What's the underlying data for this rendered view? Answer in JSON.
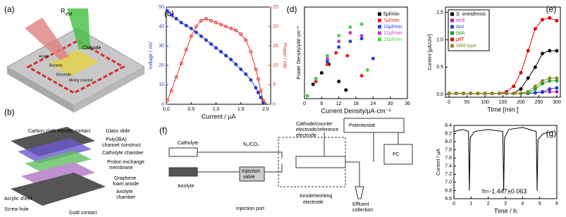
{
  "chart_data": [
    {
      "type": "line",
      "panel_label": "(c)",
      "xlabel": "Current / μA",
      "ylabel": "Voltage / mV",
      "y2label": "Power / nW",
      "color_axes": true,
      "x": [
        0.02,
        0.1,
        0.2,
        0.3,
        0.4,
        0.5,
        0.6,
        0.7,
        0.8,
        0.9,
        1.0,
        1.1,
        1.2,
        1.3,
        1.4,
        1.5,
        1.6,
        1.7,
        1.8,
        1.85,
        1.9,
        1.95
      ],
      "series": [
        {
          "color": "#2a3fc0",
          "marker": "filled",
          "values": [
            48,
            46,
            44,
            42,
            40.5,
            39,
            37,
            35,
            33,
            31,
            29,
            27,
            25,
            23,
            20.5,
            18,
            15.5,
            12.5,
            8.5,
            6,
            3.5,
            1
          ]
        },
        {
          "color": "#e03030",
          "marker": "open",
          "axis": "y2",
          "values": [
            1,
            3.5,
            7,
            10.5,
            14,
            17.5,
            20,
            21.5,
            22,
            21.5,
            21,
            20.5,
            20,
            19.5,
            19,
            18,
            16.5,
            13.5,
            9,
            6.5,
            3.5,
            1
          ]
        }
      ],
      "xlim": [
        0,
        2.1
      ],
      "xticks": [
        {
          "value": 0,
          "label": "0.0"
        },
        0.5,
        {
          "value": 1,
          "label": "1.0"
        },
        1.5,
        {
          "value": 2,
          "label": "2.0"
        }
      ],
      "ylim": [
        0,
        50
      ],
      "yticks": [
        0,
        10,
        20,
        30,
        40,
        50
      ],
      "y2lim": [
        0,
        25
      ],
      "y2ticks": [
        0,
        5,
        10,
        15,
        20,
        25
      ]
    },
    {
      "type": "scatter",
      "panel_label": "(d)",
      "xlabel": "Current Density/μA·cm⁻²",
      "ylabel": "Power Density/μW·cm⁻²",
      "legend": "upper right",
      "series": [
        {
          "name": "5μl/min",
          "color": "#000000",
          "x": [
            1,
            3,
            6,
            8.5,
            12,
            14.5
          ],
          "values": [
            0.5,
            2.5,
            4.5,
            6,
            3,
            1.5
          ]
        },
        {
          "name": "7μl/min",
          "color": "#e02020",
          "x": [
            1,
            4,
            8,
            11,
            15,
            20
          ],
          "values": [
            0.5,
            3,
            6,
            8,
            7.5,
            4
          ]
        },
        {
          "name": "10μl/min",
          "color": "#2040e0",
          "x": [
            1,
            4,
            8,
            12,
            16,
            20,
            24
          ],
          "values": [
            0.5,
            3.5,
            6.5,
            9,
            10,
            10.5,
            7
          ]
        },
        {
          "name": "12μl/min",
          "color": "#c040c0",
          "x": [
            1,
            4,
            8,
            12,
            16,
            20
          ],
          "values": [
            0.5,
            3.5,
            7,
            10,
            11.5,
            11
          ]
        },
        {
          "name": "15μl/min",
          "color": "#50d050",
          "x": [
            1,
            4,
            8,
            12,
            16,
            20,
            22
          ],
          "values": [
            0.5,
            3.5,
            7.5,
            11,
            12.5,
            13,
            5
          ]
        }
      ],
      "xlim": [
        0,
        36
      ],
      "xticks": [
        0,
        6,
        12,
        18,
        24,
        30,
        36
      ],
      "ylim": [
        0,
        16
      ]
    },
    {
      "type": "line",
      "panel_label": "(e)",
      "xlabel": "Time [min.]",
      "ylabel": "Current [μA/cm²]",
      "legend": "upper left",
      "x": [
        0,
        20,
        40,
        60,
        80,
        100,
        120,
        140,
        160,
        180,
        200,
        220,
        240,
        260,
        280,
        300
      ],
      "series": [
        {
          "name": "S. oneidensis",
          "color": "#000000",
          "marker": "filled",
          "values": [
            0.02,
            0.02,
            0.02,
            0.02,
            0.02,
            0.02,
            0.02,
            0.02,
            0.02,
            0.02,
            0.1,
            0.3,
            0.5,
            0.75,
            0.8,
            0.8
          ]
        },
        {
          "name": "nirS",
          "color": "#b01fb0",
          "marker": "filled",
          "values": [
            0.02,
            0.02,
            0.02,
            0.02,
            0.02,
            0.02,
            0.02,
            0.02,
            0.02,
            0.02,
            0.02,
            0.02,
            0.03,
            0.04,
            0.05,
            0.05
          ]
        },
        {
          "name": "lasI",
          "color": "#1f3fd0",
          "marker": "filled",
          "values": [
            0.02,
            0.02,
            0.02,
            0.02,
            0.02,
            0.02,
            0.02,
            0.02,
            0.02,
            0.02,
            0.02,
            0.02,
            0.03,
            0.05,
            0.1,
            0.12
          ]
        },
        {
          "name": "bdA",
          "color": "#1f9f1f",
          "marker": "filled",
          "values": [
            0.02,
            0.02,
            0.02,
            0.02,
            0.02,
            0.02,
            0.02,
            0.02,
            0.02,
            0.02,
            0.02,
            0.02,
            0.1,
            0.2,
            0.25,
            0.25
          ]
        },
        {
          "name": "pilT",
          "color": "#e00000",
          "marker": "filled",
          "values": [
            0.02,
            0.02,
            0.02,
            0.02,
            0.02,
            0.02,
            0.02,
            0.02,
            0.05,
            0.15,
            0.4,
            0.8,
            1.2,
            1.37,
            1.4,
            1.35
          ]
        },
        {
          "name": "Wild-type",
          "color": "#8a8a20",
          "marker": "filled",
          "values": [
            0.02,
            0.02,
            0.02,
            0.02,
            0.02,
            0.02,
            0.02,
            0.02,
            0.02,
            0.02,
            0.02,
            0.05,
            0.15,
            0.25,
            0.3,
            0.3
          ]
        }
      ],
      "xlim": [
        -10,
        310
      ],
      "xticks": [
        0,
        50,
        100,
        150,
        200,
        250,
        300
      ],
      "ylim": [
        -0.05,
        1.6
      ],
      "yticks": [
        {
          "value": 0,
          "label": "0.0"
        },
        0.5,
        {
          "value": 1,
          "label": "1.0"
        },
        1.5
      ]
    },
    {
      "type": "line",
      "panel_label": "(g)",
      "xlabel": "Time / h",
      "ylabel": "Current / μA",
      "annotation": "h=-1.447±0.063",
      "x": [
        0,
        0.5,
        0.85,
        0.9,
        0.95,
        1.2,
        2.0,
        2.85,
        2.9,
        2.95,
        3.2,
        4.0,
        4.8,
        4.85,
        4.9,
        5.2,
        5.8
      ],
      "series": [
        {
          "color": "#000000",
          "marker": "none",
          "values": [
            8.25,
            8.3,
            8.25,
            6.8,
            8.1,
            8.25,
            8.3,
            8.25,
            6.8,
            8.1,
            8.3,
            8.35,
            8.25,
            6.8,
            8.05,
            8.2,
            8.25
          ]
        }
      ],
      "xlim": [
        0,
        6
      ],
      "xticks": [
        0,
        1,
        2,
        3,
        4,
        5,
        6
      ],
      "ylim": [
        6.6,
        8.4
      ],
      "yticks": [
        6.6,
        6.8,
        {
          "value": 7,
          "label": "7.0"
        },
        7.2,
        7.4,
        7.6,
        7.8,
        {
          "value": 8,
          "label": "8.0"
        },
        8.2,
        8.4
      ]
    }
  ],
  "diagrams": {
    "a": {
      "label": "(a)",
      "r": "R",
      "r_sub": "ext",
      "labels": [
        "Cathode",
        "Anode",
        "Bacteria",
        "Electrode",
        "Mixing channel"
      ]
    },
    "b": {
      "label": "(b)",
      "labels": [
        "Carbon cloth electric contact",
        "Glass slide",
        "Poly(IBA)",
        "channel construct",
        "Catholyte chamber",
        "Proton exchange",
        "membrane",
        "Graphene",
        "foam anode",
        "Anolyte",
        "chamber",
        "Acrylic sheet",
        "Screw hole",
        "Gold contact"
      ]
    },
    "f": {
      "label": "(f)",
      "labels": [
        "Catholyte",
        "Anolyte",
        "N₂/CO₂",
        "Cathode/counter",
        "electrode/reference",
        "electrode",
        "Potentiostat",
        "PC",
        "Injection",
        "valve",
        "Injection port",
        "Anode/working",
        "electrode",
        "Effluent",
        "collection"
      ]
    }
  }
}
